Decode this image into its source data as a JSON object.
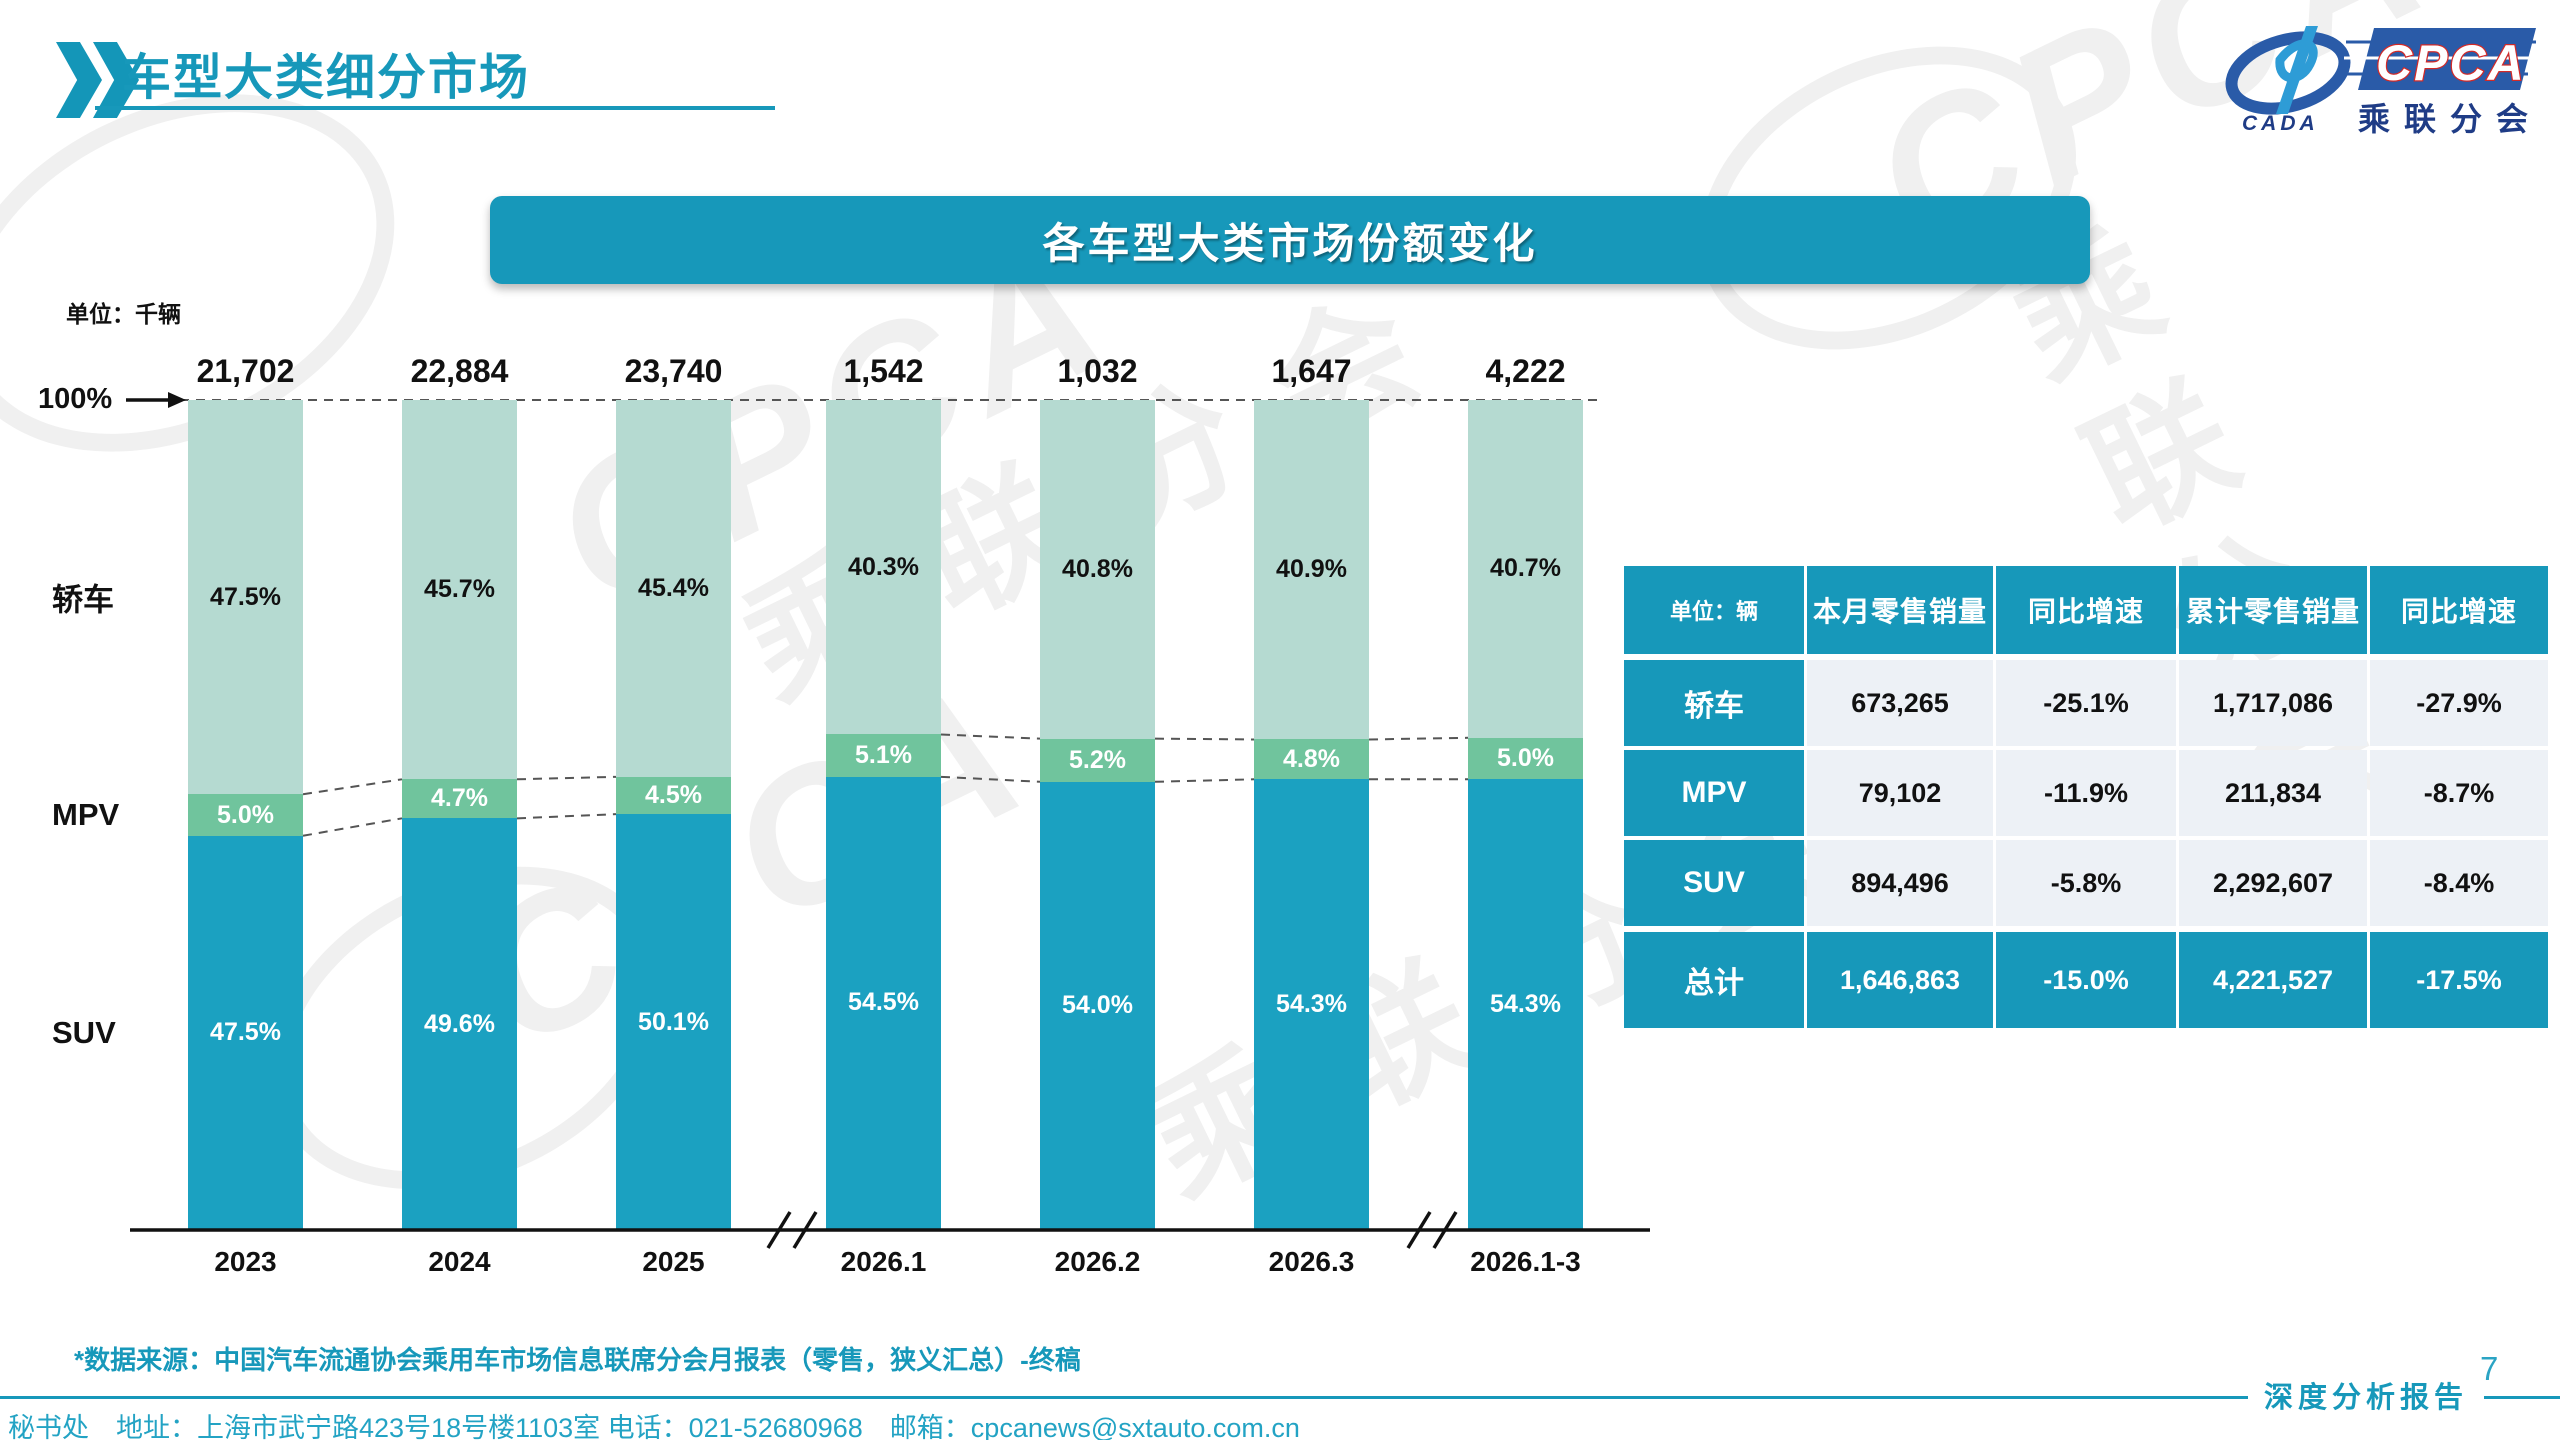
{
  "header": {
    "title": "车型大类细分市场"
  },
  "logo": {
    "cada": "CADA",
    "cpca": "CPCA",
    "subtitle": "乘联分会"
  },
  "banner": {
    "title": "各车型大类市场份额变化"
  },
  "chart": {
    "unit_label": "单位：千辆",
    "hundred_label": "100%"
  },
  "chart_data": {
    "type": "bar",
    "stacked": true,
    "unit": "千辆",
    "title": "各车型大类市场份额变化",
    "categories": [
      "2023",
      "2024",
      "2025",
      "2026.1",
      "2026.2",
      "2026.3",
      "2026.1-3"
    ],
    "totals": [
      "21,702",
      "22,884",
      "23,740",
      "1,542",
      "1,032",
      "1,647",
      "4,222"
    ],
    "series": [
      {
        "name": "轿车",
        "color": "#b5dad1",
        "label_color": "#111111",
        "values": [
          47.5,
          45.7,
          45.4,
          40.3,
          40.8,
          40.9,
          40.7
        ]
      },
      {
        "name": "MPV",
        "color": "#70c49d",
        "label_color": "#ffffff",
        "values": [
          5.0,
          4.7,
          4.5,
          5.1,
          5.2,
          4.8,
          5.0
        ]
      },
      {
        "name": "SUV",
        "color": "#1ba1c1",
        "label_color": "#ffffff",
        "values": [
          47.5,
          49.6,
          50.1,
          54.5,
          54.0,
          54.3,
          54.3
        ]
      }
    ],
    "value_suffix": "%",
    "ylim": [
      0,
      100
    ],
    "axis_breaks_between": [
      [
        "2025",
        "2026.1"
      ],
      [
        "2026.3",
        "2026.1-3"
      ]
    ],
    "legend_position": "left-side-labels",
    "grid": false
  },
  "table": {
    "unit_header": "单位：辆",
    "columns": [
      "本月零售销量",
      "同比增速",
      "累计零售销量",
      "同比增速"
    ],
    "rows": [
      {
        "label": "轿车",
        "values": [
          "673,265",
          "-25.1%",
          "1,717,086",
          "-27.9%"
        ],
        "total": false
      },
      {
        "label": "MPV",
        "values": [
          "79,102",
          "-11.9%",
          "211,834",
          "-8.7%"
        ],
        "total": false
      },
      {
        "label": "SUV",
        "values": [
          "894,496",
          "-5.8%",
          "2,292,607",
          "-8.4%"
        ],
        "total": false
      },
      {
        "label": "总计",
        "values": [
          "1,646,863",
          "-15.0%",
          "4,221,527",
          "-17.5%"
        ],
        "total": true
      }
    ]
  },
  "footer": {
    "source_note": "*数据来源：中国汽车流通协会乘用车市场信息联席分会月报表（零售，狭义汇总）-终稿",
    "contact": "秘书处　地址：上海市武宁路423号18号楼1103室  电话：021-52680968　邮箱：cpcanews@sxtauto.com.cn",
    "page_number": "7",
    "report_label": "深度分析报告"
  },
  "colors": {
    "primary_teal": "#1798ba",
    "suv_bar": "#1ba1c1",
    "mpv_bar": "#70c49d",
    "sedan_bar": "#b5dad1",
    "table_cell_bg": "#edf1f6",
    "logo_dark_blue": "#1f3c86",
    "logo_light_blue": "#2e9cd6",
    "cpca_red_outline": "#d22a28"
  }
}
